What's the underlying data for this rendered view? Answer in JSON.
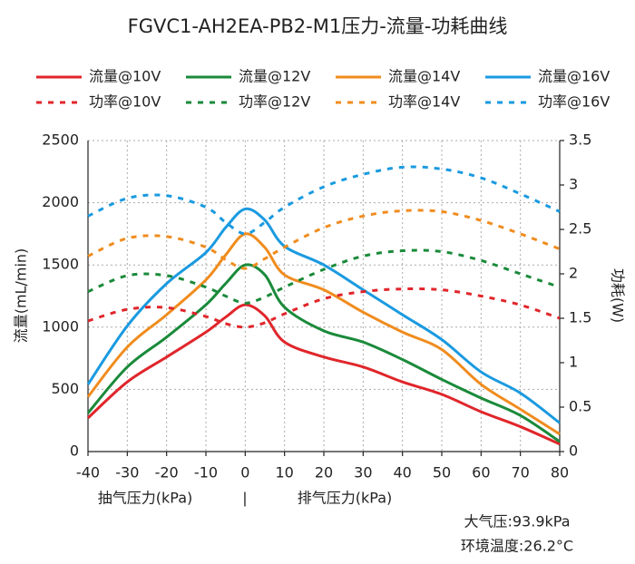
{
  "chart_data": {
    "type": "line",
    "title": "FGVC1-AH2EA-PB2-M1压力-流量-功耗曲线",
    "y_label": "流量(mL/min)",
    "y2_label": "功耗(W)",
    "x_label_left": "抽气压力(kPa)",
    "x_label_divider": "|",
    "x_label_right": "排气压力(kPa)",
    "annotations": [
      "大气压:93.9kPa",
      "环境温度:26.2°C"
    ],
    "x": [
      -40,
      -30,
      -20,
      -10,
      -5,
      0,
      5,
      10,
      20,
      30,
      40,
      50,
      60,
      70,
      80
    ],
    "xlim": [
      -40,
      80
    ],
    "xticks": [
      -40,
      -30,
      -20,
      -10,
      0,
      10,
      20,
      30,
      40,
      50,
      60,
      70,
      80
    ],
    "ylim": [
      0,
      2500
    ],
    "yticks": [
      0,
      500,
      1000,
      1500,
      2000,
      2500
    ],
    "y2lim": [
      0,
      3.5
    ],
    "y2ticks": [
      0,
      0.5,
      1,
      1.5,
      2,
      2.5,
      3,
      3.5
    ],
    "grid": true,
    "series": [
      {
        "name": "流量@10V",
        "color": "#e0262b",
        "line_style": "solid",
        "values": [
          270,
          560,
          760,
          960,
          1080,
          1180,
          1090,
          880,
          760,
          680,
          560,
          460,
          320,
          200,
          60
        ]
      },
      {
        "name": "流量@12V",
        "color": "#1a8a3a",
        "line_style": "solid",
        "values": [
          310,
          680,
          920,
          1180,
          1350,
          1500,
          1420,
          1160,
          970,
          880,
          740,
          580,
          430,
          290,
          80
        ]
      },
      {
        "name": "流量@14V",
        "color": "#f08c1e",
        "line_style": "solid",
        "values": [
          440,
          840,
          1100,
          1380,
          1580,
          1750,
          1640,
          1420,
          1300,
          1120,
          960,
          820,
          540,
          340,
          140
        ]
      },
      {
        "name": "流量@16V",
        "color": "#1a9ae0",
        "line_style": "solid",
        "values": [
          540,
          1010,
          1350,
          1600,
          1800,
          1950,
          1860,
          1650,
          1500,
          1300,
          1100,
          900,
          640,
          470,
          230
        ]
      },
      {
        "name": "功率@10V",
        "color": "#e0262b",
        "line_style": "dashed",
        "axis": "y2",
        "values": [
          1.47,
          1.6,
          1.62,
          1.52,
          1.44,
          1.4,
          1.45,
          1.55,
          1.72,
          1.8,
          1.83,
          1.82,
          1.75,
          1.65,
          1.5
        ]
      },
      {
        "name": "功率@12V",
        "color": "#1a8a3a",
        "line_style": "dashed",
        "axis": "y2",
        "values": [
          1.8,
          1.98,
          1.98,
          1.85,
          1.75,
          1.67,
          1.74,
          1.85,
          2.05,
          2.2,
          2.26,
          2.25,
          2.15,
          2.0,
          1.85
        ]
      },
      {
        "name": "功率@14V",
        "color": "#f08c1e",
        "line_style": "dashed",
        "axis": "y2",
        "values": [
          2.2,
          2.4,
          2.42,
          2.3,
          2.16,
          2.06,
          2.17,
          2.3,
          2.52,
          2.65,
          2.71,
          2.7,
          2.6,
          2.45,
          2.28
        ]
      },
      {
        "name": "功率@16V",
        "color": "#1a9ae0",
        "line_style": "dashed",
        "axis": "y2",
        "values": [
          2.65,
          2.85,
          2.88,
          2.75,
          2.58,
          2.45,
          2.58,
          2.75,
          2.98,
          3.12,
          3.2,
          3.18,
          3.08,
          2.9,
          2.7
        ]
      }
    ]
  }
}
